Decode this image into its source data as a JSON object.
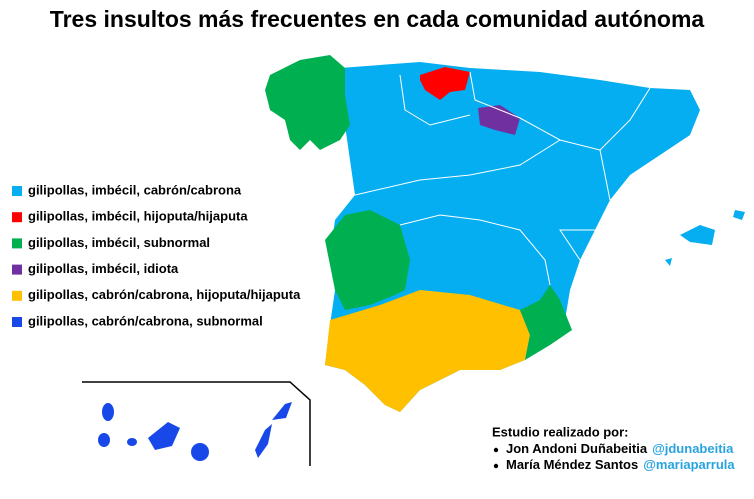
{
  "title": "Tres insultos más frecuentes en cada comunidad autónoma",
  "legend": [
    {
      "label": "gilipollas, imbécil, cabrón/cabrona",
      "color": "#04aef0"
    },
    {
      "label": "gilipollas, imbécil, hijoputa/hijaputa",
      "color": "#ff0000"
    },
    {
      "label": "gilipollas, imbécil, subnormal",
      "color": "#00b050"
    },
    {
      "label": "gilipollas, imbécil, idiota",
      "color": "#7030a0"
    },
    {
      "label": "gilipollas, cabrón/cabrona, hijoputa/hijaputa",
      "color": "#ffc000"
    },
    {
      "label": "gilipollas, cabrón/cabrona, subnormal",
      "color": "#1848e8"
    }
  ],
  "credits": {
    "heading": "Estudio realizado por:",
    "authors": [
      {
        "name": "Jon Andoni Duñabeitia",
        "handle": "@jdunabeitia"
      },
      {
        "name": "María Méndez Santos",
        "handle": "@mariaparrula"
      }
    ]
  }
}
